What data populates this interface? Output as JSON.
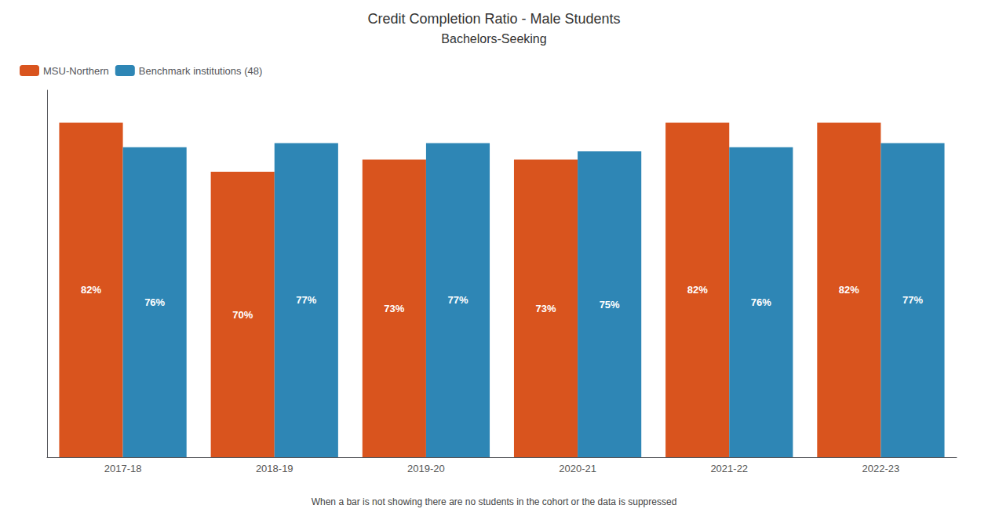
{
  "chart_data": {
    "type": "bar",
    "title": "Credit Completion Ratio - Male Students",
    "subtitle": "Bachelors-Seeking",
    "categories": [
      "2017-18",
      "2018-19",
      "2019-20",
      "2020-21",
      "2021-22",
      "2022-23"
    ],
    "series": [
      {
        "name": "MSU-Northern",
        "color": "#d9541e",
        "values": [
          82,
          70,
          73,
          73,
          82,
          82
        ],
        "value_labels": [
          "82%",
          "70%",
          "73%",
          "73%",
          "82%",
          "82%"
        ]
      },
      {
        "name": "Benchmark institutions (48)",
        "color": "#2e86b5",
        "values": [
          76,
          77,
          77,
          75,
          76,
          77
        ],
        "value_labels": [
          "76%",
          "77%",
          "77%",
          "75%",
          "76%",
          "77%"
        ]
      }
    ],
    "ylim": [
      0,
      90
    ],
    "grid": false,
    "legend": "upper left",
    "data_labels": true,
    "tick_labels": "x",
    "annotations": [
      "When a bar is not showing there are no students in the cohort or the data is suppressed"
    ]
  }
}
